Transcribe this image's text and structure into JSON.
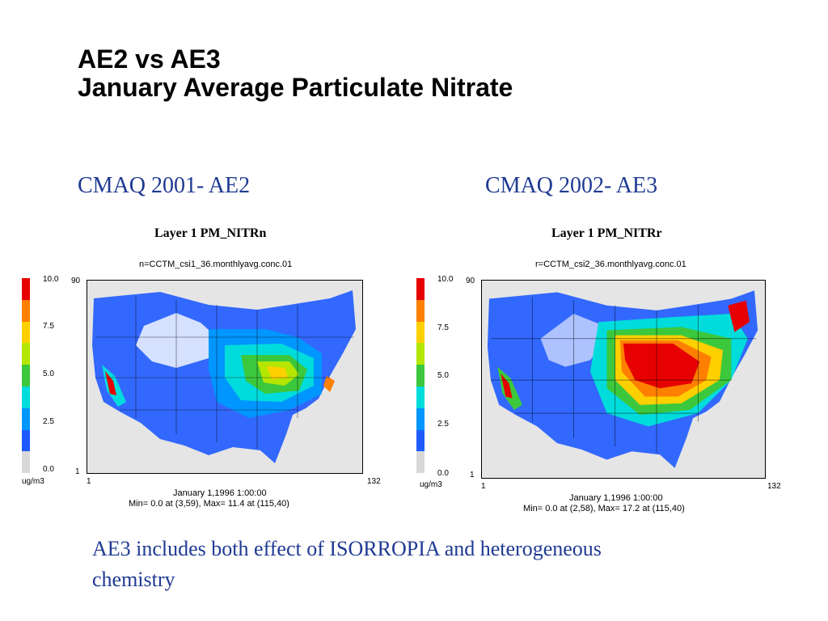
{
  "title": {
    "line1": "AE2 vs AE3",
    "line2": "January Average Particulate Nitrate"
  },
  "panels": [
    {
      "heading": "CMAQ 2001- AE2",
      "layer_label": "Layer 1  PM_NITRn",
      "file_name": "n=CCTM_csi1_36.monthlyavg.conc.01",
      "colorbar_ticks": [
        "10.0",
        "7.5",
        "5.0",
        "2.5",
        "0.0"
      ],
      "unit": "ug/m3",
      "y_top": "90",
      "y_bottom": "1",
      "x_left": "1",
      "x_right": "132",
      "date_line": "January 1,1996 1:00:00",
      "minmax_line": "Min=    0.0 at (3,59), Max=    11.4 at (115,40)"
    },
    {
      "heading": "CMAQ 2002- AE3",
      "layer_label": "Layer 1  PM_NITRr",
      "file_name": "r=CCTM_csi2_36.monthlyavg.conc.01",
      "colorbar_ticks": [
        "10.0",
        "7.5",
        "5.0",
        "2.5",
        "0.0"
      ],
      "unit": "ug/m3",
      "y_top": "90",
      "y_bottom": "1",
      "x_left": "1",
      "x_right": "132",
      "date_line": "January 1,1996 1:00:00",
      "minmax_line": "Min=    0.0 at (2,58), Max=    17.2 at (115,40)"
    }
  ],
  "colorbar_colors": [
    "#e60000",
    "#ff8000",
    "#ffd000",
    "#b4e600",
    "#3cc83c",
    "#00dcdc",
    "#0096ff",
    "#1e5aff",
    "#d8d8d8"
  ],
  "note": "AE3 includes both effect of ISORROPIA and heterogeneous chemistry"
}
